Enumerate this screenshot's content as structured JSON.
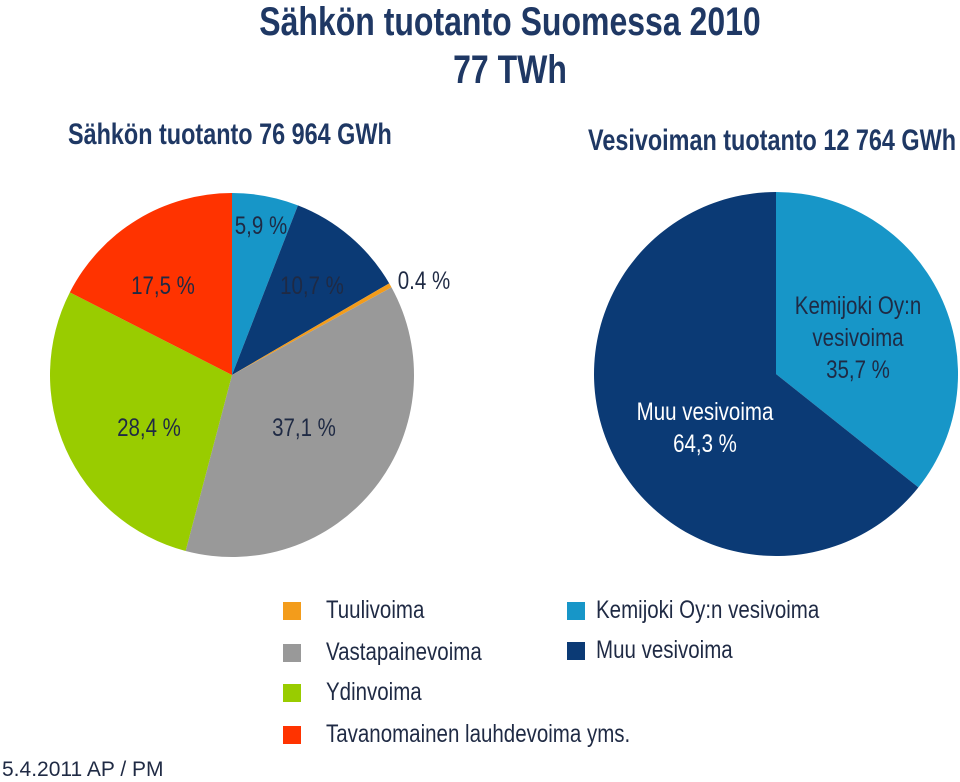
{
  "header": {
    "title_line1": "Sähkön tuotanto Suomessa 2010",
    "title_line2": "77 TWh"
  },
  "chart_data": [
    {
      "type": "pie",
      "title": "Sähkön tuotanto 76 964 GWh",
      "slices": [
        {
          "key": "kemijoki",
          "value": 5.9,
          "label": "5,9 %",
          "color": "#1796c8"
        },
        {
          "key": "muu",
          "value": 10.7,
          "label": "10,7 %",
          "color": "#0b3a75"
        },
        {
          "key": "tuuli",
          "value": 0.4,
          "label": "0.4 %",
          "color": "#f39c1b"
        },
        {
          "key": "vastapaine",
          "value": 37.1,
          "label": "37,1 %",
          "color": "#999999"
        },
        {
          "key": "ydin",
          "value": 28.4,
          "label": "28,4 %",
          "color": "#99cc00"
        },
        {
          "key": "lauhde",
          "value": 17.5,
          "label": "17,5 %",
          "color": "#ff3300"
        }
      ]
    },
    {
      "type": "pie",
      "title": "Vesivoiman tuotanto 12 764 GWh",
      "slices": [
        {
          "key": "kemijoki",
          "value": 35.7,
          "label_lines": [
            "Kemijoki Oy:n",
            "vesivoima",
            "35,7 %"
          ],
          "color": "#1796c8"
        },
        {
          "key": "muu",
          "value": 64.3,
          "label_lines": [
            "Muu vesivoima",
            "64,3 %"
          ],
          "color": "#0b3a75"
        }
      ]
    }
  ],
  "legend": [
    {
      "label": "Tuulivoima",
      "color": "#f39c1b"
    },
    {
      "label": "Vastapainevoima",
      "color": "#999999"
    },
    {
      "label": "Ydinvoima",
      "color": "#99cc00"
    },
    {
      "label": "Tavanomainen lauhdevoima yms.",
      "color": "#ff3300"
    },
    {
      "label": "Kemijoki Oy:n vesivoima",
      "color": "#1796c8"
    },
    {
      "label": "Muu vesivoima",
      "color": "#0b3a75"
    }
  ],
  "footer": {
    "text": "5.4.2011 AP / PM"
  }
}
